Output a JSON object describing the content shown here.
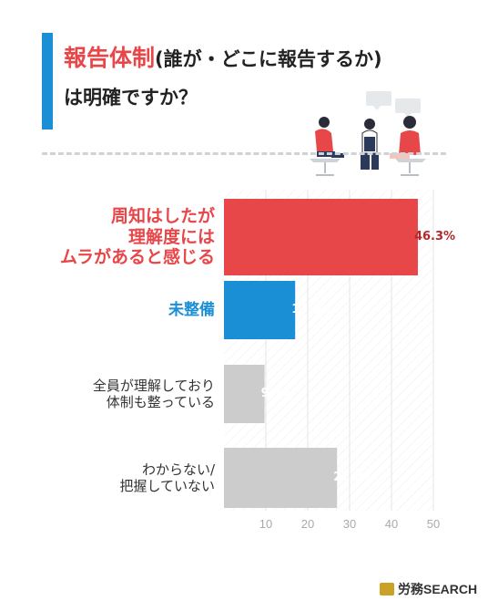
{
  "title": {
    "accent": "報告体制",
    "rest": "(誰が・どこに報告するか)",
    "line2": "は明確ですか？"
  },
  "colors": {
    "title_bar": "#1a8fd6",
    "red": "#e8474a",
    "blue": "#1a8fd6",
    "gray": "#cccccc",
    "dashed": "#cfd2d6"
  },
  "chart_data": {
    "type": "bar",
    "orientation": "horizontal",
    "categories": [
      [
        "周知はしたが",
        "理解度には",
        "ムラがあると感じる"
      ],
      [
        "未整備"
      ],
      [
        "全員が理解しており",
        "体制も整っている"
      ],
      [
        "わからない/",
        "把握していない"
      ]
    ],
    "values": [
      46.3,
      17.0,
      9.7,
      27.0
    ],
    "value_labels": [
      "46.3%",
      "17.0%",
      "9.7%",
      "27.0%"
    ],
    "bar_colors": [
      "#e8474a",
      "#1a8fd6",
      "#cccccc",
      "#cccccc"
    ],
    "label_colors": [
      "#e8474a",
      "#1a8fd6",
      "#333333",
      "#333333"
    ],
    "value_label_colors": [
      "#b5262a",
      "#ffffff",
      "#ffffff",
      "#ffffff"
    ],
    "xlim": [
      0,
      50
    ],
    "xticks": [
      "10",
      "20",
      "30",
      "40",
      "50"
    ],
    "xtick_values": [
      10,
      20,
      30,
      40,
      50
    ],
    "grid": true
  },
  "logo": {
    "text": "労務SEARCH",
    "icon": "book-icon"
  },
  "illustration": {
    "icon": "meeting-people-icon"
  }
}
